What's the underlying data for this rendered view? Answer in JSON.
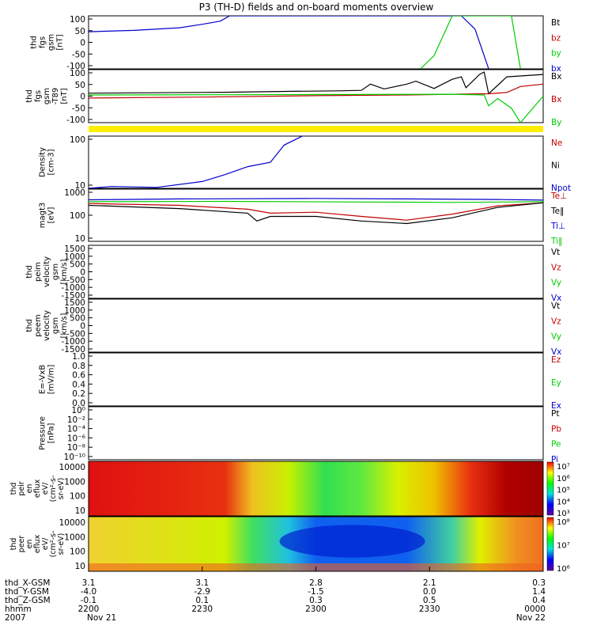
{
  "title": "P3 (TH-D) fields and on-board moments overview",
  "colors": {
    "black": "#000000",
    "red": "#c00000",
    "green": "#00cc00",
    "blue": "#0000cc",
    "yellow": "#ffee00",
    "frame": "#000000"
  },
  "chart_data": {
    "type": "line",
    "x_axis": {
      "row_labels": [
        "thd_X-GSM",
        "thd_Y-GSM",
        "thd_Z-GSM",
        "hhmm",
        "2007"
      ],
      "ticks": [
        {
          "values": [
            "3.1",
            "-4.0",
            "-0.1",
            "2200",
            "Nov 21"
          ]
        },
        {
          "values": [
            "3.1",
            "-2.9",
            "0.1",
            "2230",
            ""
          ]
        },
        {
          "values": [
            "2.8",
            "-1.5",
            "0.3",
            "2300",
            ""
          ]
        },
        {
          "values": [
            "2.1",
            "0.0",
            "0.5",
            "2330",
            ""
          ]
        },
        {
          "values": [
            "0.3",
            "1.4",
            "0.4",
            "0000",
            "Nov 22"
          ]
        }
      ]
    },
    "panels": [
      {
        "id": "fgs_gsm",
        "ylabel": [
          "thd",
          "fgs",
          "gsm",
          "[nT]"
        ],
        "yticks": [
          "100",
          "50",
          "0",
          "-50",
          "-100"
        ],
        "ylim": [
          -100,
          100
        ],
        "legend": [
          {
            "label": "Bt",
            "color": "#000000"
          },
          {
            "label": "bz",
            "color": "#c00000"
          },
          {
            "label": "by",
            "color": "#00cc00"
          },
          {
            "label": "bx",
            "color": "#0000cc"
          }
        ],
        "series": [
          {
            "name": "bx",
            "color": "#0000cc",
            "points": [
              [
                0,
                40
              ],
              [
                0.1,
                45
              ],
              [
                0.2,
                55
              ],
              [
                0.25,
                68
              ],
              [
                0.29,
                80
              ],
              [
                0.31,
                100
              ],
              [
                0.82,
                100
              ],
              [
                0.85,
                50
              ],
              [
                0.88,
                -100
              ]
            ]
          },
          {
            "name": "by",
            "color": "#00cc00",
            "points": [
              [
                0.73,
                -100
              ],
              [
                0.76,
                -50
              ],
              [
                0.8,
                100
              ],
              [
                0.93,
                100
              ],
              [
                0.95,
                -100
              ]
            ]
          }
        ]
      },
      {
        "id": "fgs_gsm_t89",
        "ylabel": [
          "thd",
          "fgs",
          "gsm",
          "-T89",
          "[nT]"
        ],
        "yticks": [
          "100",
          "50",
          "0",
          "-50",
          "-100"
        ],
        "ylim": [
          -120,
          100
        ],
        "legend": [
          {
            "label": "Bx",
            "color": "#000000"
          },
          {
            "label": "Bx",
            "color": "#c00000"
          },
          {
            "label": "By",
            "color": "#00cc00"
          }
        ],
        "series": [
          {
            "name": "Bx",
            "color": "#000000",
            "points": [
              [
                0,
                2
              ],
              [
                0.3,
                6
              ],
              [
                0.45,
                10
              ],
              [
                0.55,
                12
              ],
              [
                0.6,
                14
              ],
              [
                0.62,
                40
              ],
              [
                0.65,
                20
              ],
              [
                0.7,
                40
              ],
              [
                0.72,
                52
              ],
              [
                0.76,
                22
              ],
              [
                0.8,
                60
              ],
              [
                0.82,
                70
              ],
              [
                0.83,
                25
              ],
              [
                0.86,
                80
              ],
              [
                0.87,
                90
              ],
              [
                0.88,
                0
              ],
              [
                0.92,
                70
              ],
              [
                1.0,
                80
              ]
            ]
          },
          {
            "name": "Bx",
            "color": "#c00000",
            "points": [
              [
                0,
                -18
              ],
              [
                0.25,
                -14
              ],
              [
                0.5,
                -8
              ],
              [
                0.7,
                -5
              ],
              [
                0.8,
                -2
              ],
              [
                0.88,
                0
              ],
              [
                0.92,
                5
              ],
              [
                0.95,
                30
              ],
              [
                1.0,
                40
              ]
            ]
          },
          {
            "name": "By",
            "color": "#00cc00",
            "points": [
              [
                0,
                -5
              ],
              [
                0.3,
                -4
              ],
              [
                0.6,
                -3
              ],
              [
                0.8,
                -2
              ],
              [
                0.87,
                -5
              ],
              [
                0.88,
                -50
              ],
              [
                0.9,
                -20
              ],
              [
                0.93,
                -60
              ],
              [
                0.95,
                -120
              ],
              [
                1.0,
                -10
              ]
            ]
          }
        ]
      },
      {
        "id": "density",
        "ylabel": [
          "Density",
          "[cm-3]"
        ],
        "yticks": [
          "100",
          "10"
        ],
        "ylim": [
          1,
          200
        ],
        "scale": "log",
        "legend": [
          {
            "label": "Ne",
            "color": "#c00000"
          },
          {
            "label": "Ni",
            "color": "#000000"
          },
          {
            "label": "Npot",
            "color": "#0000cc"
          }
        ],
        "series": [
          {
            "name": "Npot",
            "color": "#0000cc",
            "points": [
              [
                0,
                1
              ],
              [
                0.05,
                1.2
              ],
              [
                0.15,
                1.1
              ],
              [
                0.25,
                2
              ],
              [
                0.3,
                4
              ],
              [
                0.35,
                9
              ],
              [
                0.4,
                14
              ],
              [
                0.43,
                80
              ],
              [
                0.47,
                200
              ]
            ]
          }
        ]
      },
      {
        "id": "temperature",
        "ylabel": [
          "magt3",
          "[eV]"
        ],
        "yticks": [
          "1000",
          "100",
          "10"
        ],
        "ylim": [
          10,
          1000
        ],
        "scale": "log",
        "legend": [
          {
            "label": "Te⊥",
            "color": "#c00000"
          },
          {
            "label": "Te‖",
            "color": "#000000"
          },
          {
            "label": "Ti⊥",
            "color": "#0000cc"
          },
          {
            "label": "Ti‖",
            "color": "#00cc00"
          }
        ],
        "series": [
          {
            "name": "Ti⊥",
            "color": "#0000cc",
            "points": [
              [
                0,
                390
              ],
              [
                0.2,
                420
              ],
              [
                0.5,
                440
              ],
              [
                0.7,
                420
              ],
              [
                0.9,
                400
              ],
              [
                1.0,
                380
              ]
            ]
          },
          {
            "name": "Ti‖",
            "color": "#00cc00",
            "points": [
              [
                0,
                330
              ],
              [
                0.3,
                340
              ],
              [
                0.6,
                320
              ],
              [
                0.8,
                310
              ],
              [
                1.0,
                330
              ]
            ]
          },
          {
            "name": "Te⊥",
            "color": "#c00000",
            "points": [
              [
                0,
                280
              ],
              [
                0.2,
                240
              ],
              [
                0.35,
                170
              ],
              [
                0.4,
                120
              ],
              [
                0.5,
                130
              ],
              [
                0.6,
                90
              ],
              [
                0.7,
                65
              ],
              [
                0.8,
                110
              ],
              [
                0.9,
                230
              ],
              [
                1.0,
                300
              ]
            ]
          },
          {
            "name": "Te‖",
            "color": "#000000",
            "points": [
              [
                0,
                240
              ],
              [
                0.2,
                180
              ],
              [
                0.35,
                120
              ],
              [
                0.37,
                60
              ],
              [
                0.4,
                90
              ],
              [
                0.5,
                90
              ],
              [
                0.6,
                60
              ],
              [
                0.7,
                48
              ],
              [
                0.8,
                80
              ],
              [
                0.9,
                200
              ],
              [
                1.0,
                300
              ]
            ]
          }
        ]
      },
      {
        "id": "peim_velocity",
        "ylabel": [
          "thd",
          "peim",
          "velocity",
          "gsm",
          "[km/s]"
        ],
        "yticks": [
          "1500",
          "1000",
          "500",
          "0",
          "-500",
          "-1000",
          "-1500"
        ],
        "ylim": [
          -1500,
          1500
        ],
        "legend": [
          {
            "label": "Vt",
            "color": "#000000"
          },
          {
            "label": "Vz",
            "color": "#c00000"
          },
          {
            "label": "Vy",
            "color": "#00cc00"
          },
          {
            "label": "Vx",
            "color": "#0000cc"
          }
        ],
        "series": []
      },
      {
        "id": "peem_velocity",
        "ylabel": [
          "thd",
          "peem",
          "velocity",
          "gsm",
          "[km/s]"
        ],
        "yticks": [
          "1500",
          "1000",
          "500",
          "0",
          "-500",
          "-1000",
          "-1500"
        ],
        "ylim": [
          -1500,
          1500
        ],
        "legend": [
          {
            "label": "Vt",
            "color": "#000000"
          },
          {
            "label": "Vz",
            "color": "#c00000"
          },
          {
            "label": "Vy",
            "color": "#00cc00"
          },
          {
            "label": "Vx",
            "color": "#0000cc"
          }
        ],
        "series": []
      },
      {
        "id": "e_field",
        "ylabel": [
          "E=-VxB",
          "[mV/m]"
        ],
        "yticks": [
          "1.0",
          "0.8",
          "0.6",
          "0.4",
          "0.2",
          "0.0"
        ],
        "ylim": [
          0,
          1
        ],
        "legend": [
          {
            "label": "Ez",
            "color": "#c00000"
          },
          {
            "label": "Ey",
            "color": "#00cc00"
          },
          {
            "label": "Ex",
            "color": "#0000cc"
          }
        ],
        "series": []
      },
      {
        "id": "pressure",
        "ylabel": [
          "Pressure",
          "[nPa]"
        ],
        "yticks": [
          "10⁰",
          "10⁻²",
          "10⁻⁴",
          "10⁻⁶",
          "10⁻⁸",
          "10⁻¹⁰"
        ],
        "ylim": [
          1e-10,
          1
        ],
        "scale": "log",
        "legend": [
          {
            "label": "Pt",
            "color": "#000000"
          },
          {
            "label": "Pb",
            "color": "#c00000"
          },
          {
            "label": "Pe",
            "color": "#00cc00"
          },
          {
            "label": "Pi",
            "color": "#0000cc"
          }
        ],
        "series": []
      }
    ],
    "spectrograms": [
      {
        "id": "peir_eflux",
        "ylabel": [
          "thd",
          "peir",
          "en",
          "eflux",
          "eV/",
          "(cm²-s-",
          "sr-eV)"
        ],
        "yticks": [
          "10000",
          "1000",
          "100",
          "10"
        ],
        "ylim": [
          10,
          20000
        ],
        "colorbar_ticks": [
          "10⁷",
          "10⁶",
          "10⁵",
          "10⁴",
          "10³"
        ]
      },
      {
        "id": "peer_eflux",
        "ylabel": [
          "thd",
          "peer",
          "en",
          "eflux",
          "eV/",
          "(cm²-s-",
          "sr-eV)"
        ],
        "yticks": [
          "10000",
          "1000",
          "100",
          "10"
        ],
        "ylim": [
          10,
          20000
        ],
        "colorbar_ticks": [
          "10⁸",
          "10⁷",
          "10⁶"
        ]
      }
    ]
  }
}
